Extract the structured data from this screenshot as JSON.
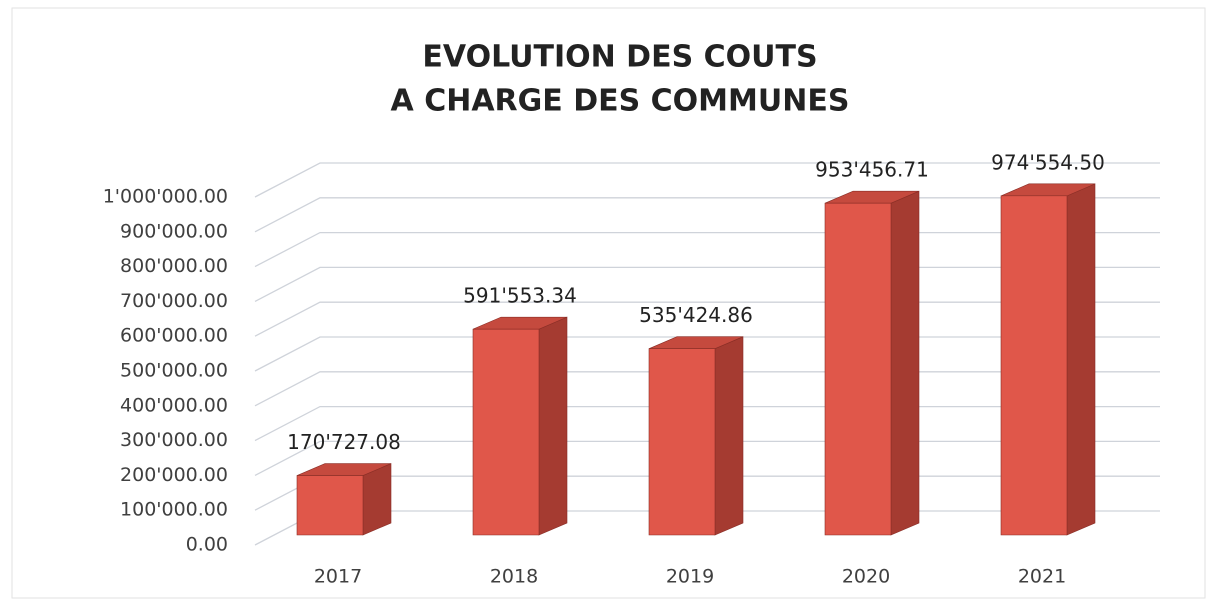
{
  "chart_data": {
    "type": "bar3d",
    "title": [
      "EVOLUTION DES COUTS",
      "A CHARGE DES COMMUNES"
    ],
    "categories": [
      "2017",
      "2018",
      "2019",
      "2020",
      "2021"
    ],
    "values": [
      170727.08,
      591553.34,
      535424.86,
      953456.71,
      974554.5
    ],
    "value_labels": [
      "170'727.08",
      "591'553.34",
      "535'424.86",
      "953'456.71",
      "974'554.50"
    ],
    "color": "#e0574a",
    "ylim": [
      0,
      1000000
    ],
    "yticks": [
      {
        "value": 0,
        "label": "0.00"
      },
      {
        "value": 100000,
        "label": "100'000.00"
      },
      {
        "value": 200000,
        "label": "200'000.00"
      },
      {
        "value": 300000,
        "label": "300'000.00"
      },
      {
        "value": 400000,
        "label": "400'000.00"
      },
      {
        "value": 500000,
        "label": "500'000.00"
      },
      {
        "value": 600000,
        "label": "600'000.00"
      },
      {
        "value": 700000,
        "label": "700'000.00"
      },
      {
        "value": 800000,
        "label": "800'000.00"
      },
      {
        "value": 900000,
        "label": "900'000.00"
      },
      {
        "value": 1000000,
        "label": "1'000'000.00"
      }
    ],
    "grid": true
  }
}
